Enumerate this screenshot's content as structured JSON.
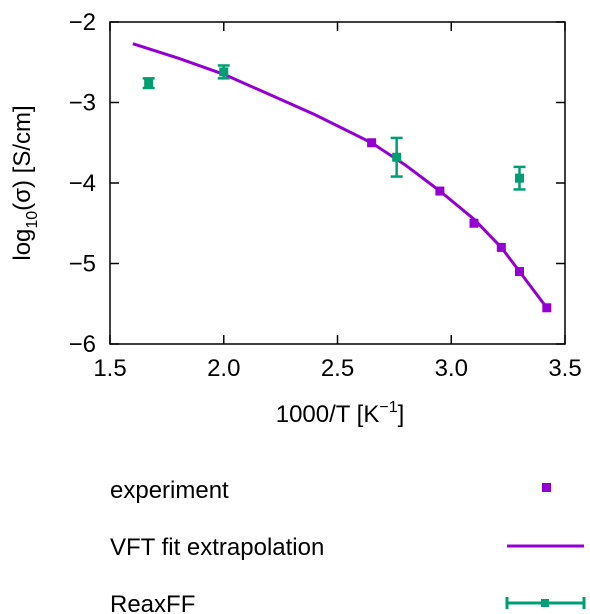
{
  "chart_data": {
    "type": "scatter",
    "xlabel": "1000/T [K",
    "xlabel_sup": "−1",
    "xlabel_end": "]",
    "ylabel": "log",
    "ylabel_sub": "10",
    "ylabel_end": "(σ) [S/cm]",
    "xlim": [
      1.5,
      3.5
    ],
    "ylim": [
      -6,
      -2
    ],
    "x_ticks": [
      1.5,
      2.0,
      2.5,
      3.0,
      3.5
    ],
    "x_tick_labels": [
      "1.5",
      "2.0",
      "2.5",
      "3.0",
      "3.5"
    ],
    "y_ticks": [
      -6,
      -5,
      -4,
      -3,
      -2
    ],
    "y_tick_labels": [
      "−6",
      "−5",
      "−4",
      "−3",
      "−2"
    ],
    "grid": false,
    "legend_position": "bottom",
    "series": [
      {
        "name": "experiment",
        "kind": "points",
        "color": "#9400d3",
        "x": [
          2.65,
          2.95,
          3.1,
          3.22,
          3.3,
          3.42
        ],
        "y": [
          -3.5,
          -4.1,
          -4.5,
          -4.8,
          -5.1,
          -5.55
        ]
      },
      {
        "name": "VFT fit extrapolation",
        "kind": "line",
        "color": "#9400d3",
        "x": [
          1.6,
          1.8,
          2.0,
          2.2,
          2.4,
          2.65,
          2.8,
          2.95,
          3.1,
          3.22,
          3.3,
          3.42
        ],
        "y": [
          -2.27,
          -2.45,
          -2.65,
          -2.9,
          -3.15,
          -3.5,
          -3.78,
          -4.1,
          -4.45,
          -4.8,
          -5.1,
          -5.55
        ]
      },
      {
        "name": "ReaxFF",
        "kind": "errorbar",
        "color": "#009e73",
        "x": [
          1.67,
          2.0,
          2.76,
          3.3
        ],
        "y": [
          -2.76,
          -2.62,
          -3.68,
          -3.94
        ],
        "err": [
          0.06,
          0.08,
          0.24,
          0.14
        ]
      }
    ]
  }
}
